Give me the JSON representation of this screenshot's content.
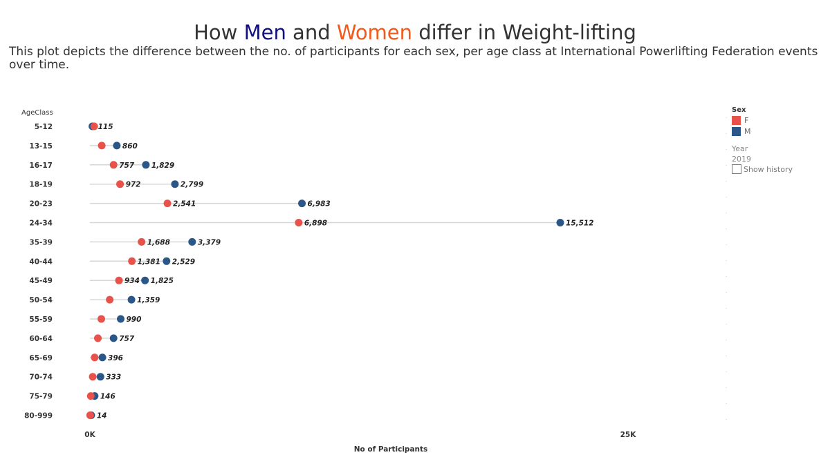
{
  "title": {
    "prefix": "How ",
    "men": "Men",
    "and": " and ",
    "women": "Women",
    "suffix": " differ in Weight-lifting"
  },
  "subtitle": "This plot depicts the difference between the no. of participants for each sex, per age class at International Powerlifting Federation events over time.",
  "legend": {
    "title": "Sex",
    "items": [
      {
        "label": "F",
        "color": "#e8524a"
      },
      {
        "label": "M",
        "color": "#2b5788"
      }
    ],
    "year_label": "Year",
    "year_value": "2019",
    "show_history_label": "Show history"
  },
  "chart_data": {
    "type": "dumbbell",
    "y_axis_title": "AgeClass",
    "x_axis_title": "No of Participants",
    "x_ticks": [
      "0K",
      "25K"
    ],
    "xlim": [
      0,
      25000
    ],
    "colors": {
      "F": "#e8524a",
      "M": "#2b5788",
      "connector": "#d6d6d6"
    },
    "categories": [
      "5-12",
      "13-15",
      "16-17",
      "18-19",
      "20-23",
      "24-34",
      "35-39",
      "40-44",
      "45-49",
      "50-54",
      "55-59",
      "60-64",
      "65-69",
      "70-74",
      "75-79",
      "80-999"
    ],
    "series": [
      {
        "name": "F",
        "values": [
          200,
          550,
          1100,
          1400,
          3600,
          9700,
          2400,
          1950,
          1350,
          920,
          530,
          370,
          220,
          130,
          40,
          10
        ]
      },
      {
        "name": "M",
        "values": [
          115,
          1250,
          2600,
          3950,
          9850,
          21850,
          4750,
          3560,
          2560,
          1930,
          1430,
          1100,
          580,
          490,
          220,
          60
        ]
      }
    ],
    "labels": [
      "115",
      "860",
      "757",
      "1,829",
      "972",
      "2,799",
      "2,541",
      "6,983",
      "6,898",
      "15,512",
      "1,688",
      "3,379",
      "1,381",
      "2,529",
      "934",
      "1,825",
      "1,359",
      "990",
      "757",
      "396",
      "333",
      "146",
      "14"
    ],
    "label_rows": [
      [
        {
          "text_index": 0,
          "series": "M"
        }
      ],
      [
        {
          "text_index": 1,
          "series": "M"
        }
      ],
      [
        {
          "text_index": 2,
          "series": "F"
        },
        {
          "text_index": 3,
          "series": "M"
        }
      ],
      [
        {
          "text_index": 4,
          "series": "F"
        },
        {
          "text_index": 5,
          "series": "M"
        }
      ],
      [
        {
          "text_index": 6,
          "series": "F"
        },
        {
          "text_index": 7,
          "series": "M"
        }
      ],
      [
        {
          "text_index": 8,
          "series": "F"
        },
        {
          "text_index": 9,
          "series": "M"
        }
      ],
      [
        {
          "text_index": 10,
          "series": "F"
        },
        {
          "text_index": 11,
          "series": "M"
        }
      ],
      [
        {
          "text_index": 12,
          "series": "F"
        },
        {
          "text_index": 13,
          "series": "M"
        }
      ],
      [
        {
          "text_index": 14,
          "series": "F"
        },
        {
          "text_index": 15,
          "series": "M"
        }
      ],
      [
        {
          "text_index": 16,
          "series": "M"
        }
      ],
      [
        {
          "text_index": 17,
          "series": "M"
        }
      ],
      [
        {
          "text_index": 18,
          "series": "M"
        }
      ],
      [
        {
          "text_index": 19,
          "series": "M"
        }
      ],
      [
        {
          "text_index": 20,
          "series": "M"
        }
      ],
      [
        {
          "text_index": 21,
          "series": "M"
        }
      ],
      [
        {
          "text_index": 22,
          "series": "M"
        }
      ]
    ]
  }
}
